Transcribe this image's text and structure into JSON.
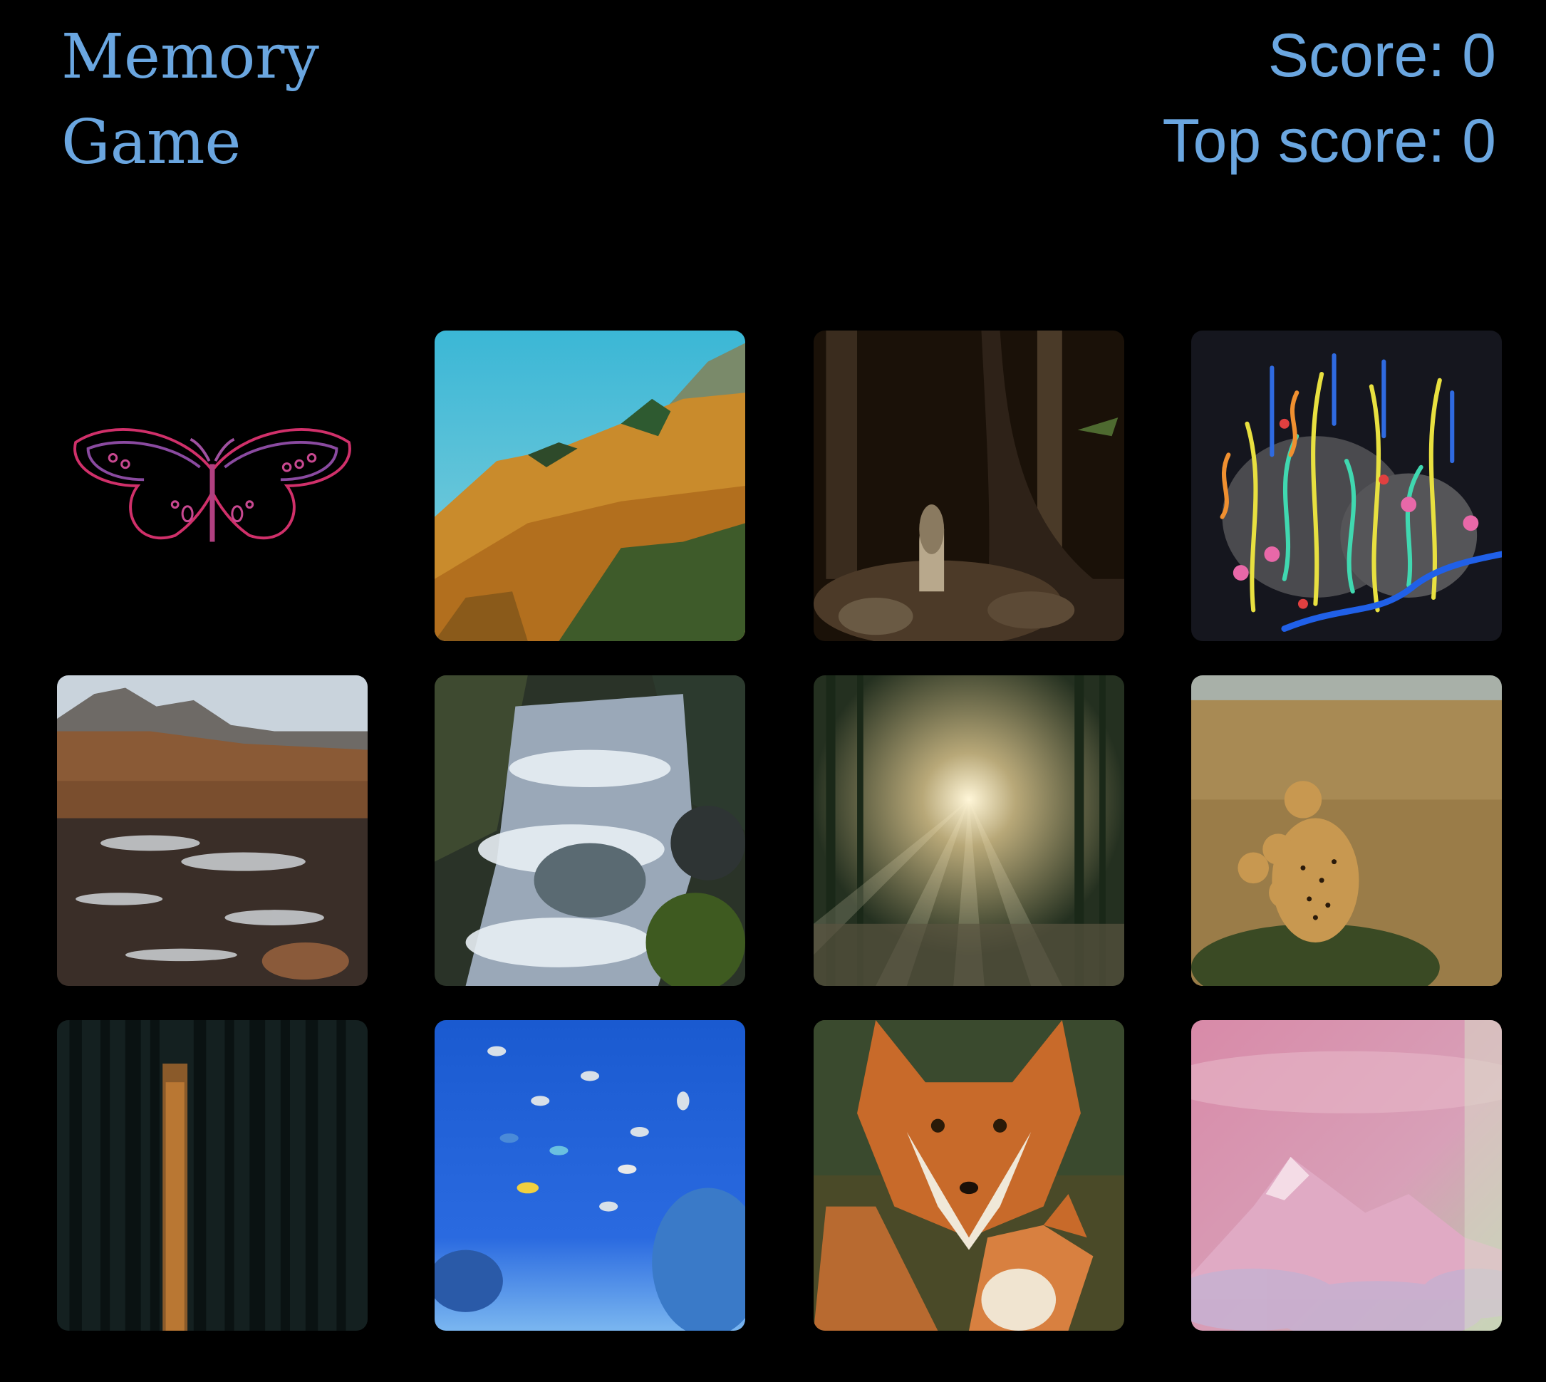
{
  "header": {
    "title_line1": "Memory",
    "title_line2": "Game",
    "score_label": "Score:",
    "score": "0",
    "top_score_label": "Top score:",
    "top_score": "0"
  },
  "cards": [
    {
      "name": "butterfly"
    },
    {
      "name": "autumn-hillside"
    },
    {
      "name": "forest-mushroom"
    },
    {
      "name": "neon-garden-drawing"
    },
    {
      "name": "mountain-river"
    },
    {
      "name": "waterfall"
    },
    {
      "name": "sunbeam-forest"
    },
    {
      "name": "cheetahs"
    },
    {
      "name": "dark-forest-sunset"
    },
    {
      "name": "underwater-fish"
    },
    {
      "name": "foxes"
    },
    {
      "name": "pink-mountain-clouds"
    }
  ],
  "colors": {
    "accent": "#6AA6E0",
    "background": "#000000"
  }
}
